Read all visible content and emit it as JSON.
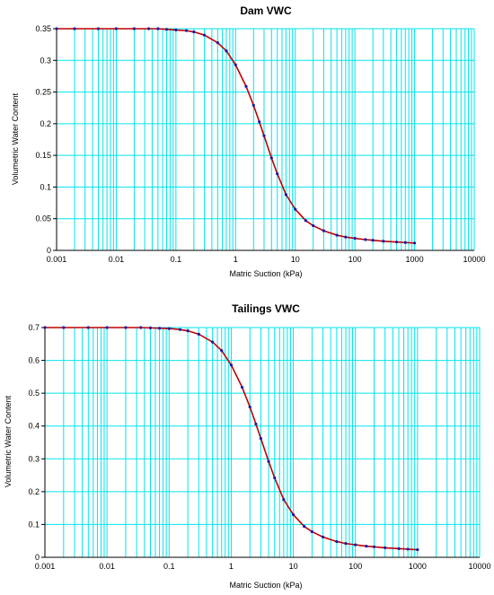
{
  "chart_data": [
    {
      "type": "line",
      "title": "Dam VWC",
      "xlabel": "Matric Suction (kPa)",
      "ylabel": "Volumetric Water Content",
      "xscale": "log",
      "xlim": [
        0.001,
        10000
      ],
      "ylim": [
        0,
        0.35
      ],
      "grid": true,
      "x_tick_labels": [
        "0.001",
        "0.01",
        "0.1",
        "1",
        "10",
        "100",
        "1000",
        "10000"
      ],
      "y_tick_labels": [
        "0",
        "0.05",
        "0.1",
        "0.15",
        "0.2",
        "0.25",
        "0.3",
        "0.35"
      ],
      "colors": {
        "grid": "#00e5ee",
        "line": "#c00000",
        "points": "#1a1aa8"
      },
      "series": [
        {
          "x": [
            0.001,
            0.002,
            0.005,
            0.01,
            0.02,
            0.035,
            0.05,
            0.07,
            0.1,
            0.15,
            0.2,
            0.3,
            0.5,
            0.7,
            1,
            1.5,
            2,
            2.5,
            3,
            4,
            5,
            7,
            10,
            15,
            20,
            30,
            50,
            70,
            100,
            150,
            200,
            300,
            500,
            700,
            1000
          ],
          "y": [
            0.35,
            0.35,
            0.35,
            0.35,
            0.35,
            0.35,
            0.35,
            0.349,
            0.348,
            0.347,
            0.345,
            0.34,
            0.328,
            0.315,
            0.293,
            0.259,
            0.229,
            0.203,
            0.181,
            0.146,
            0.121,
            0.088,
            0.065,
            0.047,
            0.039,
            0.031,
            0.024,
            0.021,
            0.019,
            0.017,
            0.016,
            0.0145,
            0.0132,
            0.0124,
            0.0116
          ]
        }
      ]
    },
    {
      "type": "line",
      "title": "Tailings VWC",
      "xlabel": "Matric Suction (kPa)",
      "ylabel": "Volumetric Water Content",
      "xscale": "log",
      "xlim": [
        0.001,
        10000
      ],
      "ylim": [
        0,
        0.7
      ],
      "grid": true,
      "x_tick_labels": [
        "0.001",
        "0.01",
        "0.1",
        "1",
        "10",
        "100",
        "1000",
        "10000"
      ],
      "y_tick_labels": [
        "0",
        "0.1",
        "0.2",
        "0.3",
        "0.4",
        "0.5",
        "0.6",
        "0.7"
      ],
      "colors": {
        "grid": "#00e5ee",
        "line": "#c00000",
        "points": "#1a1aa8"
      },
      "series": [
        {
          "x": [
            0.001,
            0.002,
            0.005,
            0.01,
            0.02,
            0.035,
            0.05,
            0.07,
            0.1,
            0.15,
            0.2,
            0.3,
            0.5,
            0.7,
            1,
            1.5,
            2,
            2.5,
            3,
            4,
            5,
            7,
            10,
            15,
            20,
            30,
            50,
            70,
            100,
            150,
            200,
            300,
            500,
            700,
            1000
          ],
          "y": [
            0.7,
            0.7,
            0.7,
            0.7,
            0.7,
            0.7,
            0.699,
            0.698,
            0.697,
            0.694,
            0.69,
            0.68,
            0.656,
            0.63,
            0.586,
            0.518,
            0.458,
            0.406,
            0.362,
            0.292,
            0.242,
            0.176,
            0.13,
            0.094,
            0.078,
            0.062,
            0.048,
            0.042,
            0.038,
            0.034,
            0.032,
            0.029,
            0.0264,
            0.0248,
            0.0232
          ]
        }
      ]
    }
  ]
}
